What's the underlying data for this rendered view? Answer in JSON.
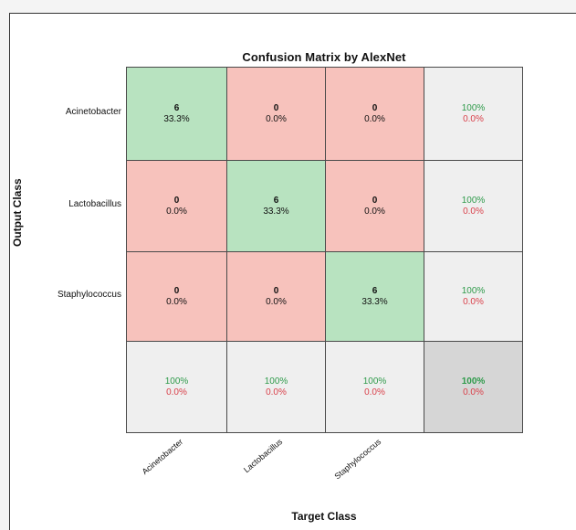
{
  "chart_data": {
    "type": "heatmap",
    "title": "Confusion Matrix by AlexNet",
    "xlabel": "Target Class",
    "ylabel": "Output Class",
    "x_categories": [
      "Acinetobacter",
      "Lactobacillus",
      "Staphylococcus"
    ],
    "y_categories": [
      "Acinetobacter",
      "Lactobacillus",
      "Staphylococcus"
    ],
    "counts": [
      [
        6,
        0,
        0
      ],
      [
        0,
        6,
        0
      ],
      [
        0,
        0,
        6
      ]
    ],
    "percents": [
      [
        "33.3%",
        "0.0%",
        "0.0%"
      ],
      [
        "0.0%",
        "33.3%",
        "0.0%"
      ],
      [
        "0.0%",
        "0.0%",
        "33.3%"
      ]
    ],
    "row_summary": [
      {
        "correct": "100%",
        "error": "0.0%"
      },
      {
        "correct": "100%",
        "error": "0.0%"
      },
      {
        "correct": "100%",
        "error": "0.0%"
      }
    ],
    "col_summary": [
      {
        "correct": "100%",
        "error": "0.0%"
      },
      {
        "correct": "100%",
        "error": "0.0%"
      },
      {
        "correct": "100%",
        "error": "0.0%"
      }
    ],
    "overall": {
      "correct": "100%",
      "error": "0.0%"
    },
    "colors": {
      "correct_cell": "#b8e3c0",
      "incorrect_cell": "#f7c2bc",
      "summary_cell": "#efefef",
      "overall_cell": "#d6d6d6",
      "correct_text": "#2e9a4a",
      "error_text": "#d9404a"
    }
  }
}
